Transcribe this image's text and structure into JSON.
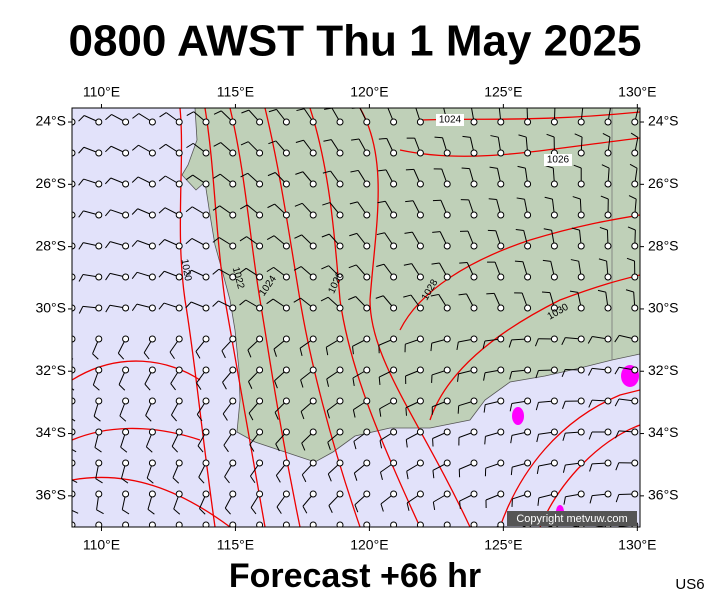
{
  "header": {
    "title": "0800 AWST Thu 1 May 2025"
  },
  "map": {
    "lon_ticks": [
      {
        "value": 110,
        "label": "110°E"
      },
      {
        "value": 115,
        "label": "115°E"
      },
      {
        "value": 120,
        "label": "120°E"
      },
      {
        "value": 125,
        "label": "125°E"
      },
      {
        "value": 130,
        "label": "130°E"
      }
    ],
    "lat_ticks": [
      {
        "value": 24,
        "label": "24°S"
      },
      {
        "value": 26,
        "label": "26°S"
      },
      {
        "value": 28,
        "label": "28°S"
      },
      {
        "value": 30,
        "label": "30°S"
      },
      {
        "value": 32,
        "label": "32°S"
      },
      {
        "value": 34,
        "label": "34°S"
      },
      {
        "value": 36,
        "label": "36°S"
      }
    ],
    "isobar_labels": [
      1024,
      1026,
      1020,
      1022,
      1024,
      1026,
      1028,
      1030
    ],
    "copyright": "Copyright metvuw.com"
  },
  "footer": {
    "forecast": "Forecast +66 hr",
    "code": "US6"
  }
}
